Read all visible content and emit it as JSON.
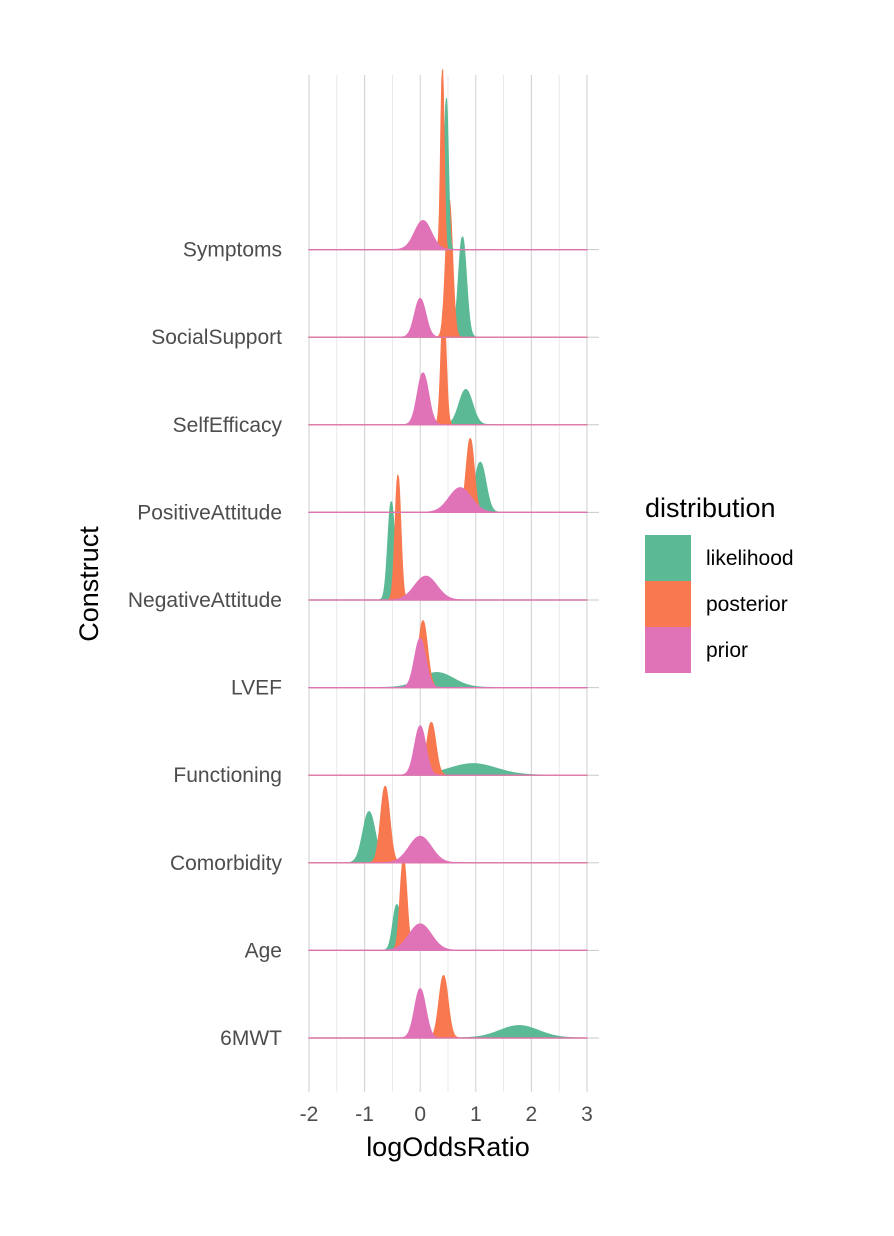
{
  "chart_data": {
    "type": "area",
    "subtype": "ridgeline",
    "xlabel": "logOddsRatio",
    "ylabel": "Construct",
    "xlim": [
      -2,
      3
    ],
    "xticks": [
      -2,
      -1,
      0,
      1,
      2,
      3
    ],
    "xtick_labels": [
      "-2",
      "-1",
      "0",
      "1",
      "2",
      "3"
    ],
    "categories": [
      "6MWT",
      "Age",
      "Comorbidity",
      "Functioning",
      "LVEF",
      "NegativeAttitude",
      "PositiveAttitude",
      "SelfEfficacy",
      "SocialSupport",
      "Symptoms"
    ],
    "grid": true,
    "legend": {
      "title": "distribution",
      "position": "right",
      "entries": [
        "likelihood",
        "posterior",
        "prior"
      ]
    },
    "colors": {
      "likelihood": "#5BBA95",
      "posterior": "#F8784F",
      "prior": "#E073B8"
    },
    "series": [
      {
        "name": "likelihood",
        "peaks": [
          {
            "category": "6MWT",
            "mean": 1.78,
            "sd": 0.35,
            "peak_height": 0.14
          },
          {
            "category": "Age",
            "mean": -0.42,
            "sd": 0.07,
            "peak_height": 0.52
          },
          {
            "category": "Comorbidity",
            "mean": -0.92,
            "sd": 0.11,
            "peak_height": 0.58
          },
          {
            "category": "Functioning",
            "mean": 0.95,
            "sd": 0.42,
            "peak_height": 0.13
          },
          {
            "category": "LVEF",
            "mean": 0.3,
            "sd": 0.3,
            "peak_height": 0.17
          },
          {
            "category": "NegativeAttitude",
            "mean": -0.52,
            "sd": 0.06,
            "peak_height": 1.12
          },
          {
            "category": "PositiveAttitude",
            "mean": 1.08,
            "sd": 0.1,
            "peak_height": 0.57
          },
          {
            "category": "SelfEfficacy",
            "mean": 0.82,
            "sd": 0.12,
            "peak_height": 0.4
          },
          {
            "category": "SocialSupport",
            "mean": 0.76,
            "sd": 0.07,
            "peak_height": 1.14
          },
          {
            "category": "Symptoms",
            "mean": 0.47,
            "sd": 0.035,
            "peak_height": 1.72
          }
        ]
      },
      {
        "name": "posterior",
        "peaks": [
          {
            "category": "6MWT",
            "mean": 0.42,
            "sd": 0.08,
            "peak_height": 0.71
          },
          {
            "category": "Age",
            "mean": -0.3,
            "sd": 0.06,
            "peak_height": 1.04
          },
          {
            "category": "Comorbidity",
            "mean": -0.63,
            "sd": 0.08,
            "peak_height": 0.87
          },
          {
            "category": "Functioning",
            "mean": 0.2,
            "sd": 0.08,
            "peak_height": 0.6
          },
          {
            "category": "LVEF",
            "mean": 0.05,
            "sd": 0.08,
            "peak_height": 0.76
          },
          {
            "category": "NegativeAttitude",
            "mean": -0.4,
            "sd": 0.05,
            "peak_height": 1.42
          },
          {
            "category": "PositiveAttitude",
            "mean": 0.9,
            "sd": 0.07,
            "peak_height": 0.84
          },
          {
            "category": "SelfEfficacy",
            "mean": 0.42,
            "sd": 0.045,
            "peak_height": 1.35
          },
          {
            "category": "SocialSupport",
            "mean": 0.52,
            "sd": 0.06,
            "peak_height": 1.57
          },
          {
            "category": "Symptoms",
            "mean": 0.4,
            "sd": 0.03,
            "peak_height": 2.05
          }
        ]
      },
      {
        "name": "prior",
        "peaks": [
          {
            "category": "6MWT",
            "mean": 0.0,
            "sd": 0.1,
            "peak_height": 0.56
          },
          {
            "category": "Age",
            "mean": 0.0,
            "sd": 0.2,
            "peak_height": 0.3
          },
          {
            "category": "Comorbidity",
            "mean": 0.0,
            "sd": 0.2,
            "peak_height": 0.3
          },
          {
            "category": "Functioning",
            "mean": 0.0,
            "sd": 0.1,
            "peak_height": 0.56
          },
          {
            "category": "LVEF",
            "mean": 0.0,
            "sd": 0.1,
            "peak_height": 0.56
          },
          {
            "category": "NegativeAttitude",
            "mean": 0.1,
            "sd": 0.2,
            "peak_height": 0.27
          },
          {
            "category": "PositiveAttitude",
            "mean": 0.72,
            "sd": 0.2,
            "peak_height": 0.28
          },
          {
            "category": "SelfEfficacy",
            "mean": 0.05,
            "sd": 0.1,
            "peak_height": 0.59
          },
          {
            "category": "SocialSupport",
            "mean": 0.0,
            "sd": 0.1,
            "peak_height": 0.44
          },
          {
            "category": "Symptoms",
            "mean": 0.05,
            "sd": 0.15,
            "peak_height": 0.33
          }
        ]
      }
    ]
  }
}
